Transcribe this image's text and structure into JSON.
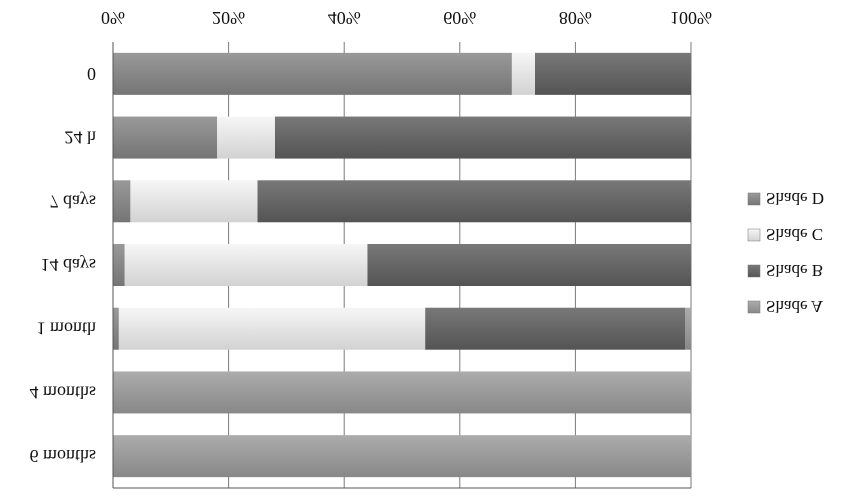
{
  "chart_data": {
    "type": "bar",
    "orientation": "horizontal",
    "stacked": true,
    "percent_stacked": true,
    "mirrored": true,
    "categories": [
      "0",
      "24 h",
      "7 days",
      "14 days",
      "1 month",
      "4 months",
      "6 months"
    ],
    "series": [
      {
        "name": "Shade A",
        "values": [
          0,
          0,
          0,
          0,
          1,
          100,
          100
        ],
        "color": "#9a9a9a"
      },
      {
        "name": "Shade B",
        "values": [
          27,
          72,
          75,
          56,
          45,
          0,
          0
        ],
        "color": "#666666"
      },
      {
        "name": "Shade C",
        "values": [
          4,
          10,
          22,
          42,
          53,
          0,
          0
        ],
        "color": "#e4e4e4"
      },
      {
        "name": "Shade D",
        "values": [
          69,
          18,
          3,
          2,
          1,
          0,
          0
        ],
        "color": "#878787"
      }
    ],
    "xlim": [
      0,
      100
    ],
    "x_ticks": [
      "0%",
      "20%",
      "40%",
      "60%",
      "80%",
      "100%"
    ],
    "grid": true,
    "legend_position": "right",
    "title": "",
    "xlabel": "",
    "ylabel": ""
  }
}
